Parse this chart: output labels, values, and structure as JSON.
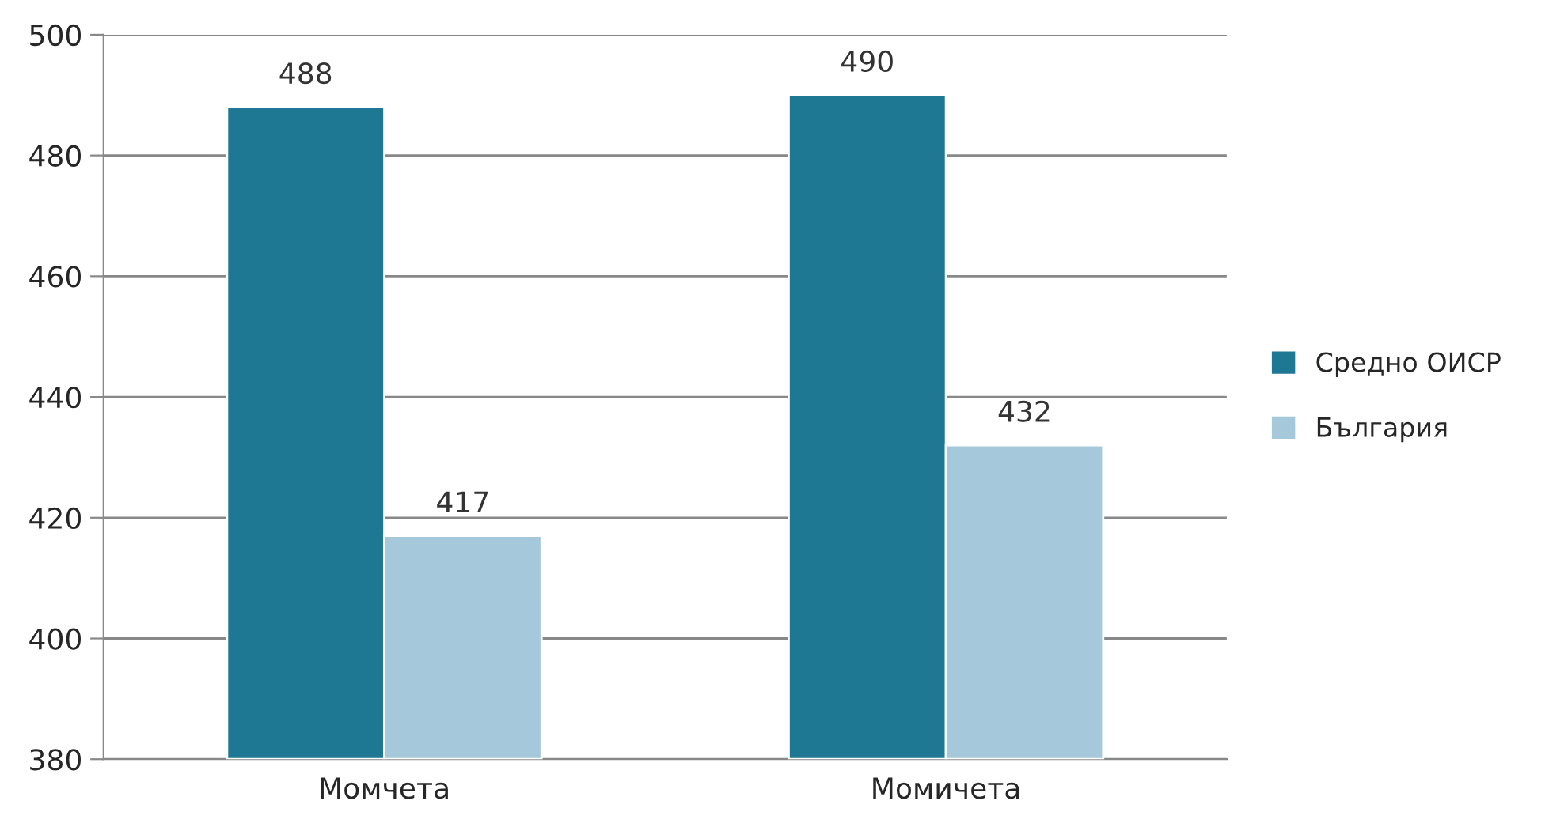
{
  "chart_data": {
    "type": "bar",
    "categories": [
      "Момчета",
      "Момичета"
    ],
    "series": [
      {
        "name": "Средно ОИСР",
        "color": "#1f7893",
        "values": [
          488,
          490
        ]
      },
      {
        "name": "България",
        "color": "#a5c8da",
        "values": [
          417,
          432
        ]
      }
    ],
    "ylim": [
      380,
      500
    ],
    "yticks": [
      380,
      400,
      420,
      440,
      460,
      480,
      500
    ],
    "grid": "y",
    "legend": "right",
    "data_labels": true
  }
}
